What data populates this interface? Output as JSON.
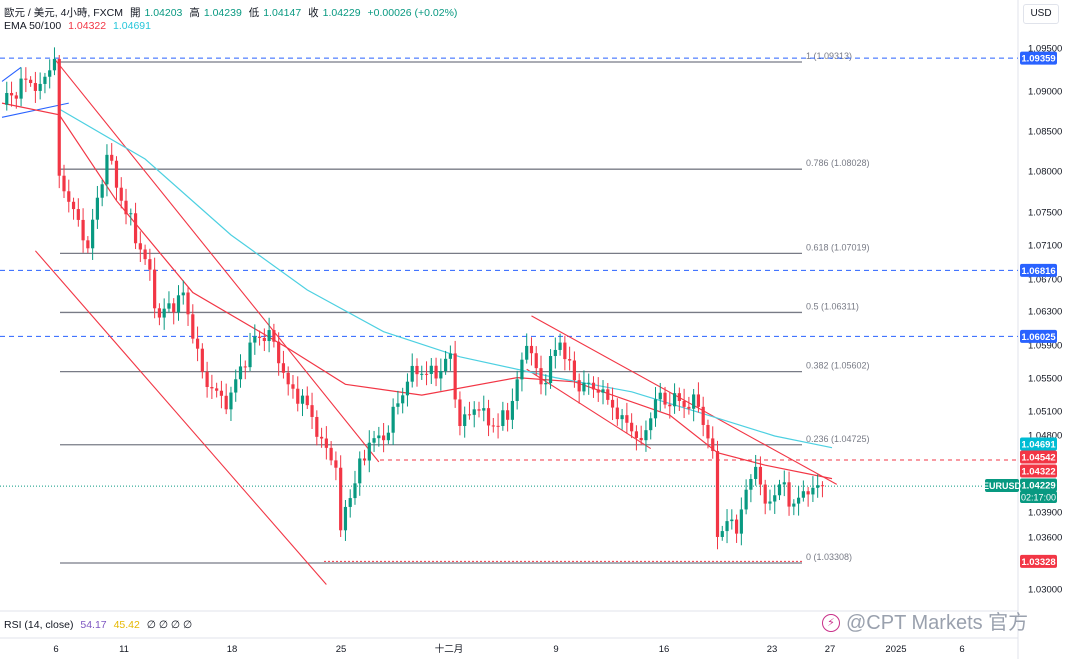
{
  "header": {
    "symbol": "歐元 / 美元, 4小時, FXCM",
    "open_label": "開",
    "open": "1.04203",
    "high_label": "高",
    "high": "1.04239",
    "low_label": "低",
    "low": "1.04147",
    "close_label": "收",
    "close": "1.04229",
    "change": "+0.00026 (+0.02%)",
    "ema_label": "EMA 50/100",
    "ema50": "1.04322",
    "ema100": "1.04691"
  },
  "currency_button": "USD",
  "rsi": {
    "label": "RSI (14, close)",
    "v1": "54.17",
    "v2": "45.42",
    "zeros": "∅ ∅ ∅ ∅"
  },
  "watermark": "@CPT Markets 官方",
  "colors": {
    "up": "#089981",
    "down": "#f23645",
    "ema50": "#f23645",
    "ema100": "#4dd0e1",
    "fib": "#787b86",
    "hline": "#2962ff",
    "channel": "#f23645",
    "blue_channel": "#2962ff"
  },
  "chart_data": {
    "type": "candlestick",
    "title": "歐元 / 美元, 4小時, FXCM",
    "ylim": [
      1.028,
      1.0965
    ],
    "y_ticks": [
      "1.09500",
      "1.09000",
      "1.08500",
      "1.08000",
      "1.07500",
      "1.07100",
      "1.06700",
      "1.06300",
      "1.05900",
      "1.05500",
      "1.05100",
      "1.04800",
      "1.03900",
      "1.03600",
      "1.03000"
    ],
    "x_ticks": [
      "6",
      "11",
      "18",
      "25",
      "十二月",
      "9",
      "16",
      "23",
      "27",
      "2025",
      "6"
    ],
    "fib_levels": [
      {
        "ratio": "1",
        "label": "1 (1.09313)",
        "value": 1.09313
      },
      {
        "ratio": "0.786",
        "label": "0.786 (1.08028)",
        "value": 1.08028
      },
      {
        "ratio": "0.618",
        "label": "0.618 (1.07019)",
        "value": 1.07019
      },
      {
        "ratio": "0.5",
        "label": "0.5 (1.06311)",
        "value": 1.06311
      },
      {
        "ratio": "0.382",
        "label": "0.382 (1.05602)",
        "value": 1.05602
      },
      {
        "ratio": "0.236",
        "label": "0.236 (1.04725)",
        "value": 1.04725
      },
      {
        "ratio": "0",
        "label": "0 (1.03308)",
        "value": 1.03308
      }
    ],
    "horizontal_lines": [
      1.09359,
      1.06816,
      1.06025,
      1.03328,
      1.04542
    ],
    "price_labels": [
      {
        "text": "1.09359",
        "value": 1.09359,
        "color": "#2962ff"
      },
      {
        "text": "1.06816",
        "value": 1.06816,
        "color": "#2962ff"
      },
      {
        "text": "1.06025",
        "value": 1.06025,
        "color": "#2962ff"
      },
      {
        "text": "1.04691",
        "value": 1.04691,
        "color": "#00bcd4"
      },
      {
        "text": "1.04542",
        "value": 1.04542,
        "color": "#f23645"
      },
      {
        "text": "1.04322",
        "value": 1.04322,
        "color": "#f23645"
      },
      {
        "text": "1.04229",
        "value": 1.04229,
        "color": "#089981"
      },
      {
        "text": "1.03328",
        "value": 1.03328,
        "color": "#f23645"
      }
    ],
    "last_price": {
      "symbol": "EURUSD",
      "value": 1.04229,
      "countdown": "02:17:00"
    },
    "anchors": [
      [
        0,
        1.088
      ],
      [
        5,
        1.091
      ],
      [
        8,
        1.0905
      ],
      [
        11,
        1.0935
      ],
      [
        12,
        1.0795
      ],
      [
        16,
        1.0742
      ],
      [
        18,
        1.0708
      ],
      [
        22,
        1.082
      ],
      [
        25,
        1.0765
      ],
      [
        30,
        1.0695
      ],
      [
        33,
        1.0625
      ],
      [
        38,
        1.0655
      ],
      [
        42,
        1.056
      ],
      [
        47,
        1.0515
      ],
      [
        52,
        1.0595
      ],
      [
        56,
        1.061
      ],
      [
        60,
        1.0545
      ],
      [
        64,
        1.052
      ],
      [
        67,
        1.048
      ],
      [
        70,
        1.0445
      ],
      [
        71,
        1.037
      ],
      [
        72,
        1.0398
      ],
      [
        77,
        1.0475
      ],
      [
        80,
        1.0478
      ],
      [
        86,
        1.0567
      ],
      [
        91,
        1.0552
      ],
      [
        94,
        1.0582
      ],
      [
        96,
        1.0495
      ],
      [
        99,
        1.0515
      ],
      [
        104,
        1.0495
      ],
      [
        107,
        1.0525
      ],
      [
        110,
        1.0591
      ],
      [
        113,
        1.0545
      ],
      [
        117,
        1.0595
      ],
      [
        120,
        1.055
      ],
      [
        125,
        1.0535
      ],
      [
        130,
        1.0508
      ],
      [
        134,
        1.0478
      ],
      [
        137,
        1.0527
      ],
      [
        142,
        1.0525
      ],
      [
        146,
        1.0518
      ],
      [
        149,
        1.0465
      ],
      [
        150,
        1.0362
      ],
      [
        152,
        1.0381
      ],
      [
        154,
        1.0366
      ],
      [
        155,
        1.0395
      ],
      [
        158,
        1.0446
      ],
      [
        160,
        1.0402
      ],
      [
        163,
        1.0425
      ],
      [
        166,
        1.0402
      ],
      [
        169,
        1.0413
      ],
      [
        172,
        1.0423
      ]
    ],
    "ema50_points": [
      [
        0,
        1.0882
      ],
      [
        12,
        1.0868
      ],
      [
        24,
        1.0765
      ],
      [
        40,
        1.0655
      ],
      [
        60,
        1.0588
      ],
      [
        72,
        1.0545
      ],
      [
        88,
        1.0532
      ],
      [
        108,
        1.0553
      ],
      [
        120,
        1.0548
      ],
      [
        140,
        1.0508
      ],
      [
        150,
        1.0463
      ],
      [
        160,
        1.0448
      ],
      [
        174,
        1.0432
      ]
    ],
    "ema100_points": [
      [
        12,
        1.0875
      ],
      [
        30,
        1.0815
      ],
      [
        48,
        1.0724
      ],
      [
        64,
        1.0658
      ],
      [
        80,
        1.0608
      ],
      [
        96,
        1.0578
      ],
      [
        116,
        1.0553
      ],
      [
        132,
        1.0536
      ],
      [
        148,
        1.0508
      ],
      [
        162,
        1.0483
      ],
      [
        174,
        1.0469
      ]
    ],
    "channels": [
      {
        "from": [
          11,
          1.0935
        ],
        "to": [
          79,
          1.0452
        ],
        "color": "#f23645"
      },
      {
        "from": [
          7,
          1.0705
        ],
        "to": [
          68,
          1.0305
        ],
        "color": "#f23645"
      },
      {
        "from": [
          111,
          1.0627
        ],
        "to": [
          175,
          1.0425
        ],
        "color": "#f23645"
      },
      {
        "from": [
          110,
          1.0563
        ],
        "to": [
          136,
          1.0468
        ],
        "color": "#f23645"
      },
      {
        "from": [
          0,
          1.0865
        ],
        "to": [
          14,
          1.0882
        ],
        "color": "#2962ff"
      },
      {
        "from": [
          0,
          1.0908
        ],
        "to": [
          4,
          1.0925
        ],
        "color": "#2962ff"
      }
    ]
  }
}
